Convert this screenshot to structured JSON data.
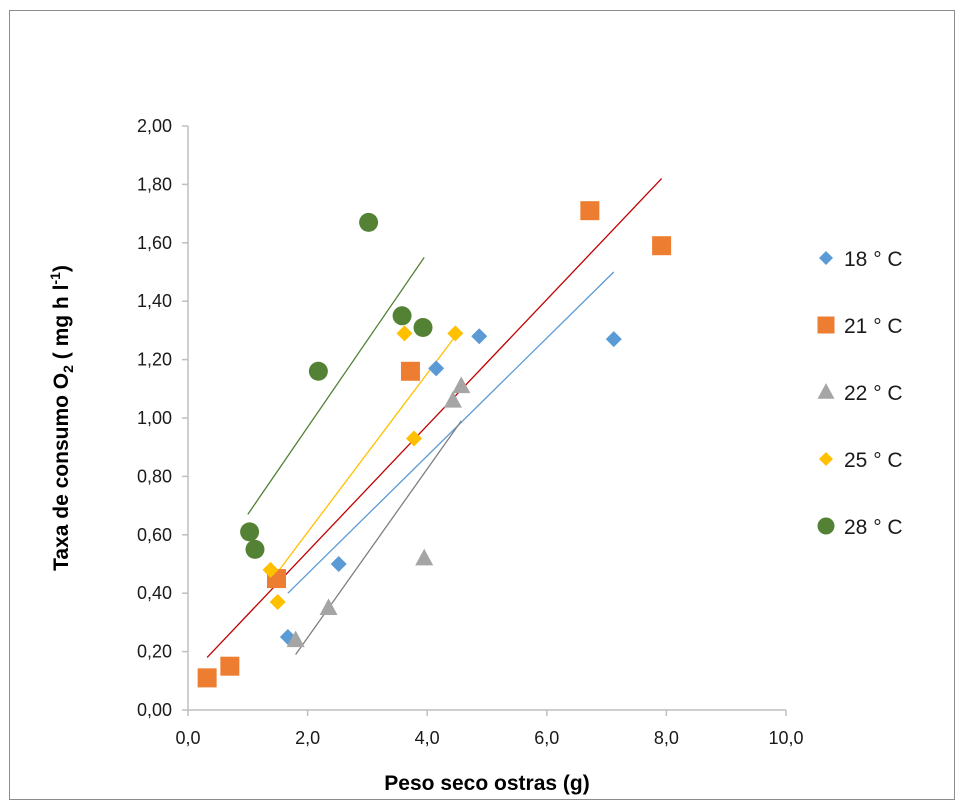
{
  "chart_data": {
    "type": "scatter",
    "title": "",
    "xlabel": "Peso seco ostras (g)",
    "ylabel_parts": {
      "main": "Taxa  de consumo O",
      "sub": "2",
      "mid": " ( mg h l",
      "sup": "-1",
      "end": ")"
    },
    "xlim": [
      0,
      10
    ],
    "ylim": [
      0,
      2
    ],
    "x_ticks": [
      0,
      2,
      4,
      6,
      8,
      10
    ],
    "x_tick_labels": [
      "0,0",
      "2,0",
      "4,0",
      "6,0",
      "8,0",
      "10,0"
    ],
    "y_ticks": [
      0,
      0.2,
      0.4,
      0.6,
      0.8,
      1.0,
      1.2,
      1.4,
      1.6,
      1.8,
      2.0
    ],
    "y_tick_labels": [
      "0,00",
      "0,20",
      "0,40",
      "0,60",
      "0,80",
      "1,00",
      "1,20",
      "1,40",
      "1,60",
      "1,80",
      "2,00"
    ],
    "grid": false,
    "legend_position": "right",
    "series": [
      {
        "name": "18 ° C",
        "marker": "diamond",
        "color": "#5b9bd5",
        "line_color": "#5b9bd5",
        "points": [
          [
            1.67,
            0.25
          ],
          [
            2.52,
            0.5
          ],
          [
            4.15,
            1.17
          ],
          [
            4.87,
            1.28
          ],
          [
            7.12,
            1.27
          ]
        ],
        "trend": [
          [
            1.67,
            0.4
          ],
          [
            7.12,
            1.5
          ]
        ]
      },
      {
        "name": "21 ° C",
        "marker": "square",
        "color": "#ed7d31",
        "line_color": "#c00000",
        "points": [
          [
            0.32,
            0.11
          ],
          [
            0.7,
            0.15
          ],
          [
            1.48,
            0.45
          ],
          [
            3.72,
            1.16
          ],
          [
            6.72,
            1.71
          ],
          [
            7.92,
            1.59
          ]
        ],
        "trend": [
          [
            0.32,
            0.18
          ],
          [
            7.92,
            1.82
          ]
        ]
      },
      {
        "name": "22 ° C",
        "marker": "triangle",
        "color": "#a5a5a5",
        "line_color": "#7f7f7f",
        "points": [
          [
            1.8,
            0.24
          ],
          [
            2.35,
            0.35
          ],
          [
            3.95,
            0.52
          ],
          [
            4.43,
            1.06
          ],
          [
            4.57,
            1.11
          ]
        ],
        "trend": [
          [
            1.8,
            0.19
          ],
          [
            4.57,
            0.99
          ]
        ]
      },
      {
        "name": "25 ° C",
        "marker": "diamond",
        "color": "#ffc000",
        "line_color": "#ffc000",
        "points": [
          [
            1.38,
            0.48
          ],
          [
            1.5,
            0.37
          ],
          [
            3.78,
            0.93
          ],
          [
            3.62,
            1.29
          ],
          [
            4.47,
            1.29
          ]
        ],
        "trend": [
          [
            1.38,
            0.44
          ],
          [
            4.47,
            1.28
          ]
        ]
      },
      {
        "name": "28 ° C",
        "marker": "circle",
        "color": "#548235",
        "line_color": "#548235",
        "points": [
          [
            1.03,
            0.61
          ],
          [
            1.12,
            0.55
          ],
          [
            2.18,
            1.16
          ],
          [
            3.02,
            1.67
          ],
          [
            3.58,
            1.35
          ],
          [
            3.93,
            1.31
          ]
        ],
        "trend": [
          [
            1.0,
            0.67
          ],
          [
            3.95,
            1.55
          ]
        ]
      }
    ]
  }
}
